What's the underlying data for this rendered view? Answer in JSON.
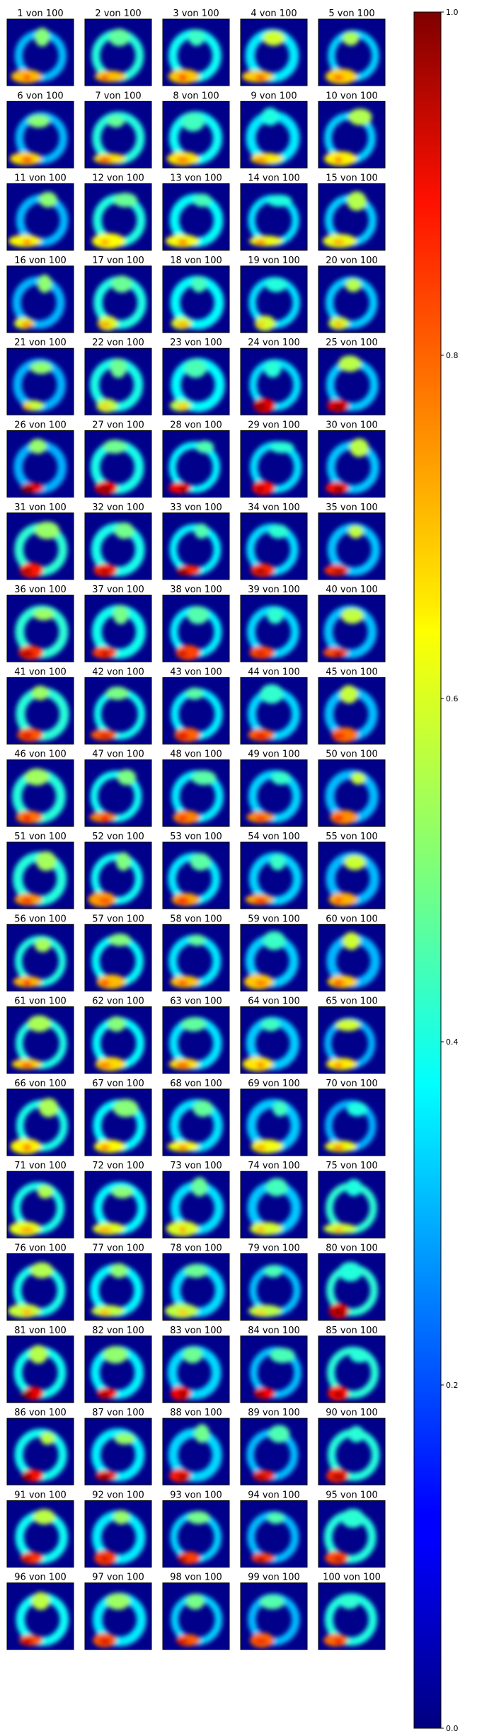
{
  "chart_data": {
    "type": "heatmap",
    "title_format": "{i} von {n}",
    "total": 100,
    "rows": 20,
    "cols": 5,
    "colormap": "jet",
    "colorbar": {
      "range": [
        0.0,
        1.0
      ],
      "ticks": [
        "0.0",
        "0.2",
        "0.4",
        "0.6",
        "0.8",
        "1.0"
      ]
    },
    "panel_titles": [
      "1 von 100",
      "2 von 100",
      "3 von 100",
      "4 von 100",
      "5 von 100",
      "6 von 100",
      "7 von 100",
      "8 von 100",
      "9 von 100",
      "10 von 100",
      "11 von 100",
      "12 von 100",
      "13 von 100",
      "14 von 100",
      "15 von 100",
      "16 von 100",
      "17 von 100",
      "18 von 100",
      "19 von 100",
      "20 von 100",
      "21 von 100",
      "22 von 100",
      "23 von 100",
      "24 von 100",
      "25 von 100",
      "26 von 100",
      "27 von 100",
      "28 von 100",
      "29 von 100",
      "30 von 100",
      "31 von 100",
      "32 von 100",
      "33 von 100",
      "34 von 100",
      "35 von 100",
      "36 von 100",
      "37 von 100",
      "38 von 100",
      "39 von 100",
      "40 von 100",
      "41 von 100",
      "42 von 100",
      "43 von 100",
      "44 von 100",
      "45 von 100",
      "46 von 100",
      "47 von 100",
      "48 von 100",
      "49 von 100",
      "50 von 100",
      "51 von 100",
      "52 von 100",
      "53 von 100",
      "54 von 100",
      "55 von 100",
      "56 von 100",
      "57 von 100",
      "58 von 100",
      "59 von 100",
      "60 von 100",
      "61 von 100",
      "62 von 100",
      "63 von 100",
      "64 von 100",
      "65 von 100",
      "66 von 100",
      "67 von 100",
      "68 von 100",
      "69 von 100",
      "70 von 100",
      "71 von 100",
      "72 von 100",
      "73 von 100",
      "74 von 100",
      "75 von 100",
      "76 von 100",
      "77 von 100",
      "78 von 100",
      "79 von 100",
      "80 von 100",
      "81 von 100",
      "82 von 100",
      "83 von 100",
      "84 von 100",
      "85 von 100",
      "86 von 100",
      "87 von 100",
      "88 von 100",
      "89 von 100",
      "90 von 100",
      "91 von 100",
      "92 von 100",
      "93 von 100",
      "94 von 100",
      "95 von 100",
      "96 von 100",
      "97 von 100",
      "98 von 100",
      "99 von 100",
      "100 von 100"
    ],
    "colors": {
      "background": "#00008b",
      "frame": "#000000"
    }
  }
}
